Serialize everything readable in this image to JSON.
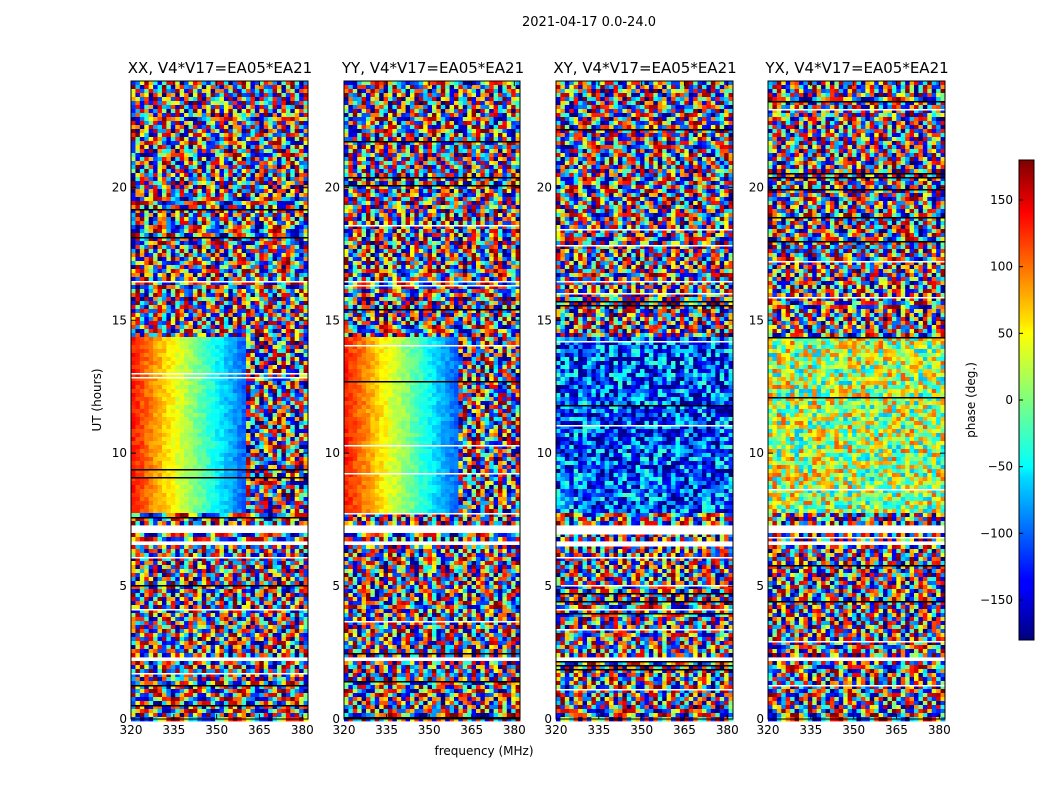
{
  "chart_data": {
    "type": "heatmap",
    "suptitle": "2021-04-17 0.0-24.0",
    "xlabel": "frequency (MHz)",
    "ylabel": "UT (hours)",
    "xlim": [
      320,
      382
    ],
    "ylim": [
      0,
      24
    ],
    "xticks": [
      "320",
      "335",
      "350",
      "365",
      "380"
    ],
    "yticks": [
      "0",
      "5",
      "10",
      "15",
      "20"
    ],
    "panels": [
      {
        "title": "XX, V4*V17=EA05*EA21",
        "polarization": "XX"
      },
      {
        "title": "YY, V4*V17=EA05*EA21",
        "polarization": "YY"
      },
      {
        "title": "XY, V4*V17=EA05*EA21",
        "polarization": "XY"
      },
      {
        "title": "YX, V4*V17=EA05*EA21",
        "polarization": "YX"
      }
    ],
    "colorbar": {
      "label": "phase (deg.)",
      "range": [
        -180,
        180
      ],
      "ticks": [
        "150",
        "100",
        "50",
        "0",
        "−50",
        "−100",
        "−150"
      ],
      "tick_values": [
        150,
        100,
        50,
        0,
        -50,
        -100,
        -150
      ],
      "colormap": "jet"
    },
    "gaps_ut": [
      [
        6.6,
        6.8
      ],
      [
        7.1,
        7.3
      ],
      [
        2.3,
        2.45
      ]
    ]
  }
}
